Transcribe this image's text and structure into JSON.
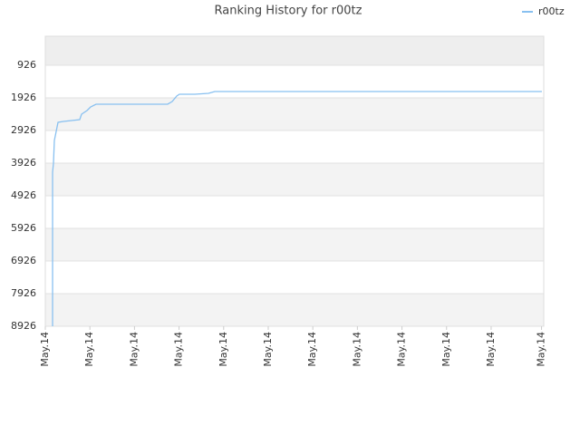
{
  "chart_data": {
    "type": "line",
    "title": "Ranking History for r00tz",
    "x": [
      0.163,
      0.163,
      0.183,
      0.203,
      0.244,
      0.285,
      0.407,
      0.772,
      0.813,
      0.935,
      1.016,
      1.138,
      2.744,
      2.846,
      2.947,
      3.008,
      3.354,
      3.659,
      3.801,
      11.138
    ],
    "series": [
      {
        "name": "r00tz",
        "color": "#88c0f0",
        "values": [
          8926,
          4204,
          3926,
          3232,
          2954,
          2676,
          2648,
          2593,
          2426,
          2315,
          2204,
          2120,
          2120,
          2037,
          1870,
          1815,
          1815,
          1787,
          1732,
          1732
        ]
      }
    ],
    "xlim": [
      0,
      11.18
    ],
    "xticks": [
      {
        "value": 0,
        "label": "May.14"
      },
      {
        "value": 1,
        "label": "May.14"
      },
      {
        "value": 2,
        "label": "May.14"
      },
      {
        "value": 3,
        "label": "May.14"
      },
      {
        "value": 4,
        "label": "May.14"
      },
      {
        "value": 5,
        "label": "May.14"
      },
      {
        "value": 6,
        "label": "May.14"
      },
      {
        "value": 7,
        "label": "May.14"
      },
      {
        "value": 8,
        "label": "May.14"
      },
      {
        "value": 9,
        "label": "May.14"
      },
      {
        "value": 10,
        "label": "May.14"
      },
      {
        "value": 11.13,
        "label": "May.14"
      }
    ],
    "ylim": [
      8926,
      37
    ],
    "yticks": [
      926,
      1926,
      2926,
      3926,
      4926,
      5926,
      6926,
      7926,
      8926
    ],
    "grid": true,
    "legend": "top-right"
  }
}
